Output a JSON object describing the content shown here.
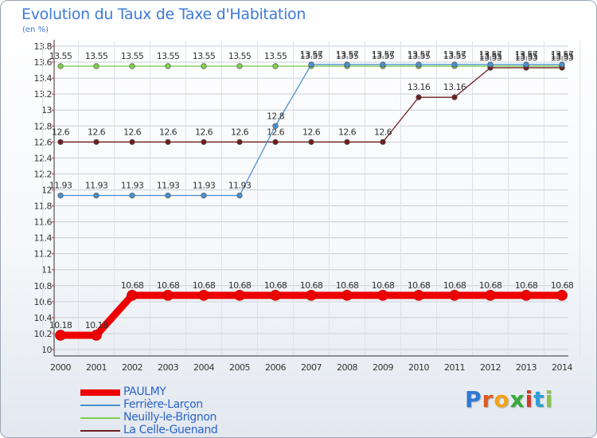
{
  "title": "Evolution du Taux de Taxe d'Habitation",
  "subtitle": "(en %)",
  "logo": {
    "letters": [
      "P",
      "r",
      "o",
      "x",
      "i",
      "t",
      "i"
    ],
    "colors": [
      "#2e78d4",
      "#e05a1c",
      "#f2a21a",
      "#3aa83a",
      "#d23a2a",
      "#2e9fd8",
      "#8bc34a"
    ]
  },
  "chart_data": {
    "type": "line",
    "x": [
      "2000",
      "2001",
      "2002",
      "2003",
      "2004",
      "2005",
      "2006",
      "2007",
      "2008",
      "2009",
      "2010",
      "2011",
      "2012",
      "2013",
      "2014"
    ],
    "ylim": [
      10,
      13.8
    ],
    "yticks": [
      "10",
      "10.2",
      "10.4",
      "10.6",
      "10.8",
      "11",
      "11.2",
      "11.4",
      "11.6",
      "11.8",
      "12",
      "12.2",
      "12.4",
      "12.6",
      "12.8",
      "13",
      "13.2",
      "13.4",
      "13.6",
      "13.8"
    ],
    "grid": true,
    "series": [
      {
        "name": "Neuilly-le-Brignon",
        "color": "#7fcf50",
        "values": [
          13.55,
          13.55,
          13.55,
          13.55,
          13.55,
          13.55,
          13.55,
          13.55,
          13.55,
          13.55,
          13.55,
          13.55,
          13.55,
          13.55,
          13.55
        ],
        "labels": [
          "13.55",
          "13.55",
          "13.55",
          "13.55",
          "13.55",
          "13.55",
          "13.55",
          "13.55",
          "13.55",
          "13.55",
          "13.55",
          "13.55",
          "13.55",
          "13.55",
          "13.55"
        ]
      },
      {
        "name": "La Celle-Guenand",
        "color": "#6e1f1f",
        "values": [
          12.6,
          12.6,
          12.6,
          12.6,
          12.6,
          12.6,
          12.6,
          12.6,
          12.6,
          12.6,
          13.16,
          13.16,
          13.53,
          13.53,
          13.53
        ],
        "labels": [
          "12.6",
          "12.6",
          "12.6",
          "12.6",
          "12.6",
          "12.6",
          "12.6",
          "12.6",
          "12.6",
          "12.6",
          "13.16",
          "13.16",
          "13.53",
          "13.53",
          "13.53"
        ]
      },
      {
        "name": "Ferrière-Larçon",
        "color": "#4a90cf",
        "values": [
          11.93,
          11.93,
          11.93,
          11.93,
          11.93,
          11.93,
          12.8,
          13.57,
          13.57,
          13.57,
          13.57,
          13.57,
          13.57,
          13.57,
          13.57
        ],
        "labels": [
          "11.93",
          "11.93",
          "11.93",
          "11.93",
          "11.93",
          "11.93",
          "12.8",
          "13.57",
          "13.57",
          "13.57",
          "13.57",
          "13.57",
          "13.57",
          "13.57",
          "13.57"
        ]
      },
      {
        "name": "PAULMY",
        "color": "#ee0000",
        "values": [
          10.18,
          10.18,
          10.68,
          10.68,
          10.68,
          10.68,
          10.68,
          10.68,
          10.68,
          10.68,
          10.68,
          10.68,
          10.68,
          10.68,
          10.68
        ],
        "labels": [
          "10.18",
          "10.18",
          "10.68",
          "10.68",
          "10.68",
          "10.68",
          "10.68",
          "10.68",
          "10.68",
          "10.68",
          "10.68",
          "10.68",
          "10.68",
          "10.68",
          "10.68"
        ]
      }
    ],
    "legend": {
      "position": "bottom-left",
      "entries": [
        {
          "label": "PAULMY",
          "color": "#ee0000"
        },
        {
          "label": "Ferrière-Larçon",
          "color": "#4a90cf"
        },
        {
          "label": "Neuilly-le-Brignon",
          "color": "#7fcf50"
        },
        {
          "label": "La Celle-Guenand",
          "color": "#6e1f1f"
        }
      ]
    }
  }
}
